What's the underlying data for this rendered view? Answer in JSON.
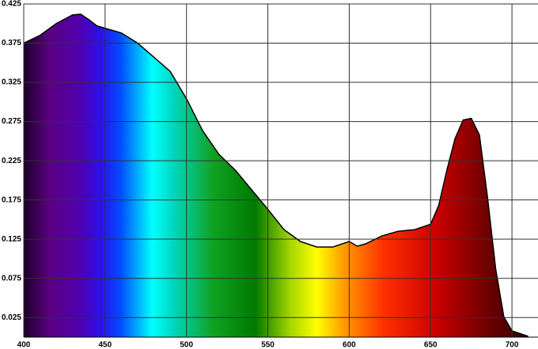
{
  "chart_data": {
    "type": "area",
    "x": [
      400,
      410,
      420,
      430,
      435,
      440,
      445,
      450,
      460,
      470,
      480,
      490,
      500,
      510,
      520,
      530,
      540,
      550,
      560,
      570,
      580,
      590,
      600,
      605,
      610,
      620,
      630,
      640,
      650,
      655,
      660,
      665,
      670,
      675,
      680,
      685,
      690,
      695,
      700,
      710
    ],
    "values": [
      0.375,
      0.385,
      0.4,
      0.411,
      0.412,
      0.405,
      0.397,
      0.394,
      0.388,
      0.375,
      0.357,
      0.339,
      0.304,
      0.263,
      0.233,
      0.213,
      0.188,
      0.163,
      0.137,
      0.122,
      0.115,
      0.115,
      0.122,
      0.116,
      0.119,
      0.129,
      0.135,
      0.137,
      0.144,
      0.168,
      0.213,
      0.253,
      0.277,
      0.279,
      0.258,
      0.178,
      0.087,
      0.026,
      0.008,
      0.001
    ],
    "xlim": [
      400,
      716
    ],
    "ylim": [
      0,
      0.425
    ],
    "xticks": [
      400,
      450,
      500,
      550,
      600,
      650,
      700
    ],
    "yticks": [
      0.025,
      0.075,
      0.125,
      0.175,
      0.225,
      0.275,
      0.325,
      0.375,
      0.425
    ],
    "grid": true
  }
}
